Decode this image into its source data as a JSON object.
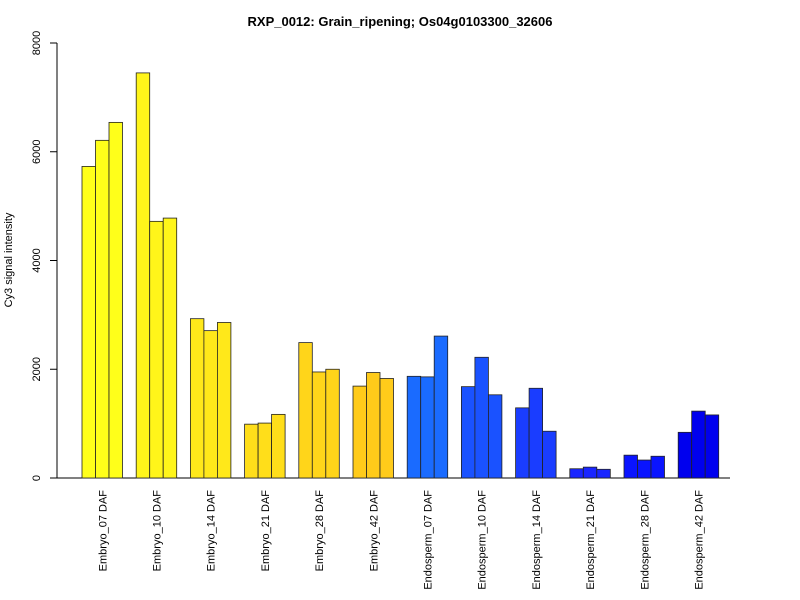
{
  "chart_data": {
    "type": "bar",
    "title": "RXP_0012: Grain_ripening; Os04g0103300_32606",
    "ylabel": "Cy3 signal intensity",
    "xlabel": "",
    "ylim": [
      0,
      8000
    ],
    "yticks": [
      0,
      2000,
      4000,
      6000,
      8000
    ],
    "grid": false,
    "legend": "none",
    "categories": [
      "Embryo_07 DAF",
      "Embryo_10 DAF",
      "Embryo_14 DAF",
      "Embryo_21 DAF",
      "Embryo_28 DAF",
      "Embryo_42 DAF",
      "Endosperm_07 DAF",
      "Endosperm_10 DAF",
      "Endosperm_14 DAF",
      "Endosperm_21 DAF",
      "Endosperm_28 DAF",
      "Endosperm_42 DAF"
    ],
    "groups": [
      {
        "values": [
          5730,
          6210,
          6540
        ],
        "color": "#FFFF1A"
      },
      {
        "values": [
          7450,
          4720,
          4780
        ],
        "color": "#FFF51A"
      },
      {
        "values": [
          2930,
          2710,
          2860
        ],
        "color": "#FFE81A"
      },
      {
        "values": [
          990,
          1010,
          1170
        ],
        "color": "#FFDE1A"
      },
      {
        "values": [
          2490,
          1950,
          2000
        ],
        "color": "#FFD51A"
      },
      {
        "values": [
          1690,
          1940,
          1830
        ],
        "color": "#FFCB1A"
      },
      {
        "values": [
          1870,
          1860,
          2610
        ],
        "color": "#1A6BFF"
      },
      {
        "values": [
          1680,
          2220,
          1530
        ],
        "color": "#1A52FF"
      },
      {
        "values": [
          1290,
          1650,
          860
        ],
        "color": "#1A3DFF"
      },
      {
        "values": [
          170,
          200,
          160
        ],
        "color": "#1A26FF"
      },
      {
        "values": [
          420,
          330,
          400
        ],
        "color": "#0A14FF"
      },
      {
        "values": [
          840,
          1230,
          1160
        ],
        "color": "#0000EE"
      }
    ]
  }
}
